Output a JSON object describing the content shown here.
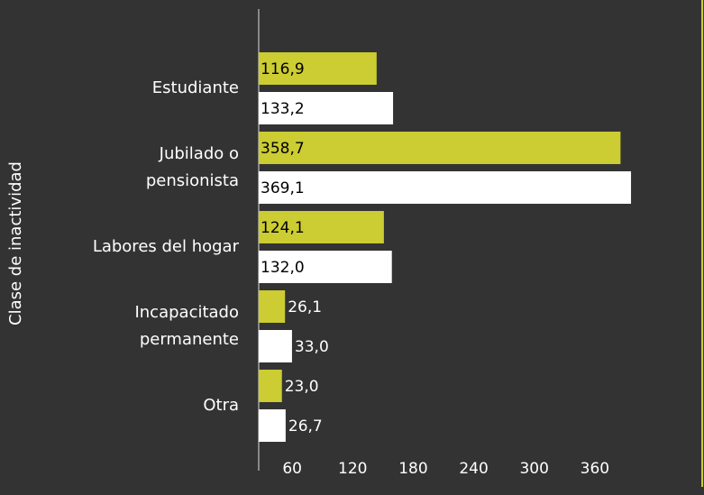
{
  "chart_data": {
    "type": "bar",
    "orientation": "horizontal",
    "y_axis_label": "Clase de inactividad",
    "categories": [
      "Estudiante",
      "Jubilado o pensionista",
      "Labores del hogar",
      "Incapacitado permanente",
      "Otra"
    ],
    "series": [
      {
        "color": "#cccc33",
        "values": [
          116.9,
          358.7,
          124.1,
          26.1,
          23.0
        ],
        "value_labels": [
          "116,9",
          "358,7",
          "124,1",
          "26,1",
          "23,0"
        ]
      },
      {
        "color": "#ffffff",
        "values": [
          133.2,
          369.1,
          132.0,
          33.0,
          26.7
        ],
        "value_labels": [
          "133,2",
          "369,1",
          "132,0",
          "33,0",
          "26,7"
        ]
      }
    ],
    "xlim": [
      0,
      420
    ],
    "xticks": [
      60,
      120,
      180,
      240,
      300,
      360
    ],
    "grid": false
  }
}
